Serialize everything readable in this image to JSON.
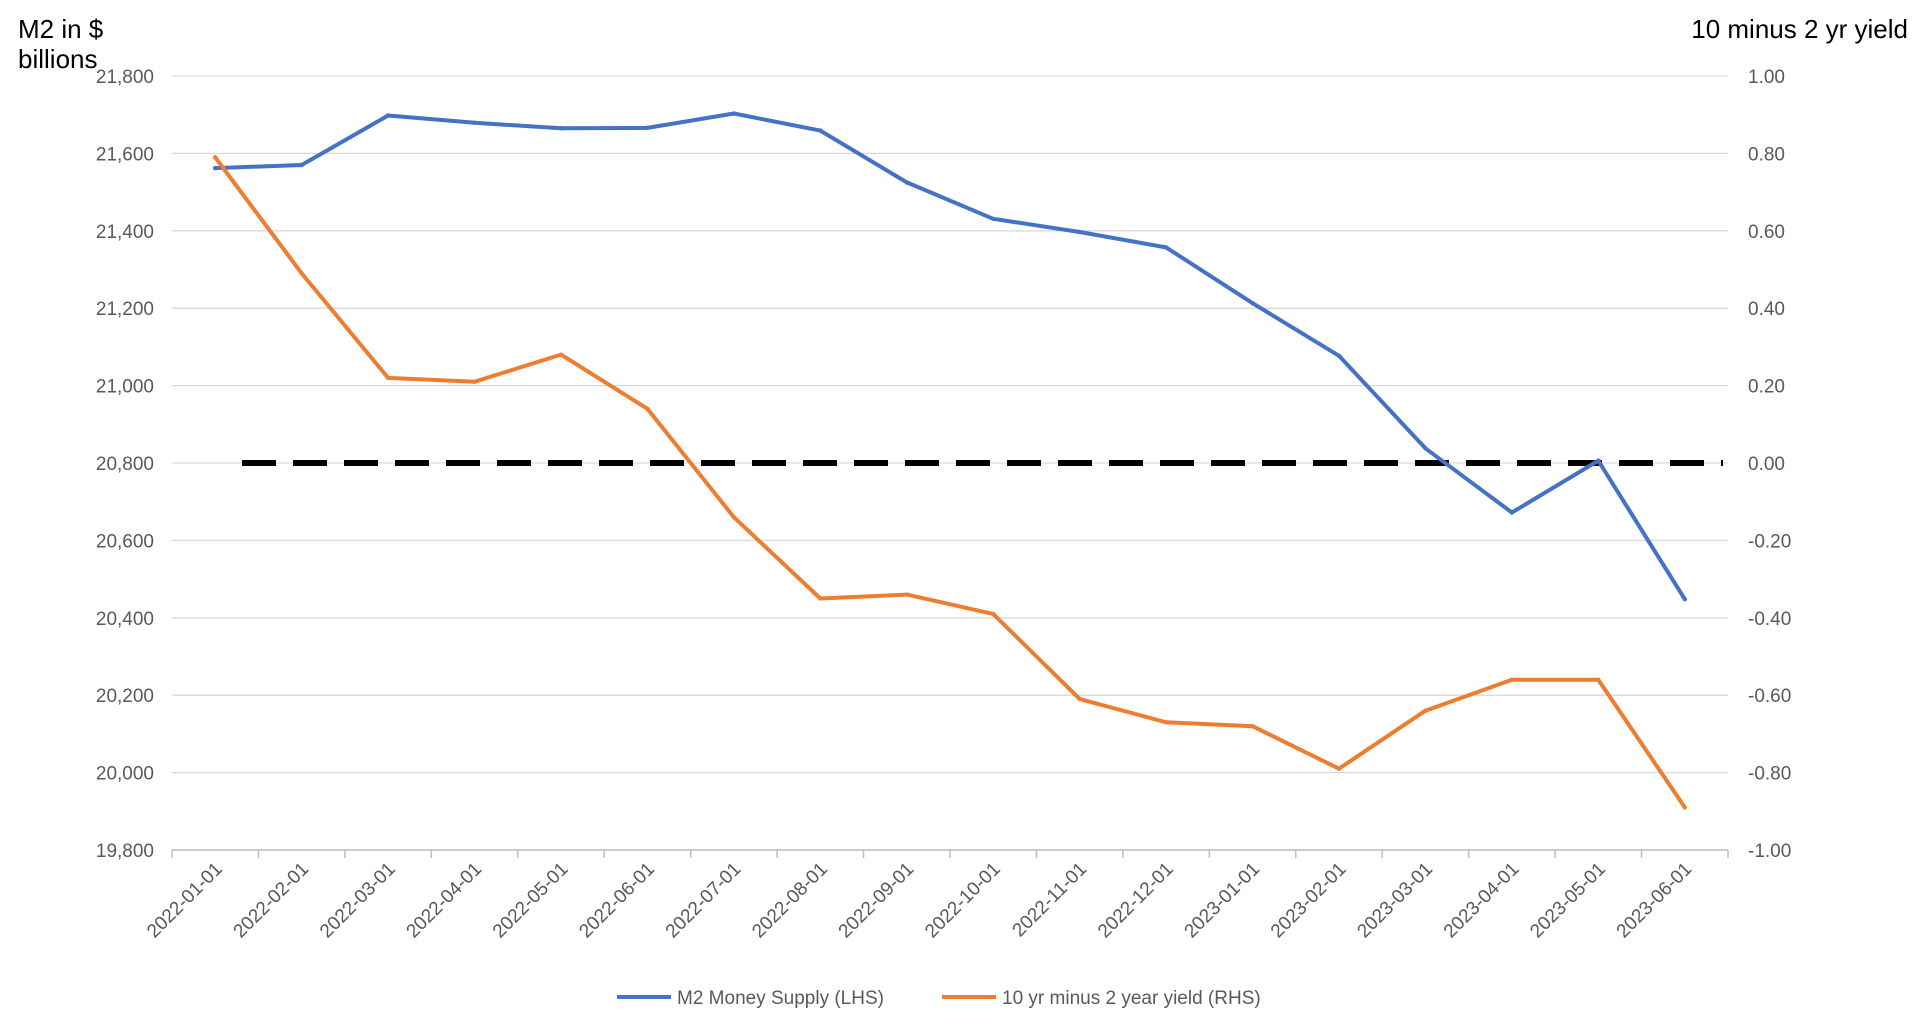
{
  "chart_data": {
    "type": "line",
    "x": [
      "2022-01-01",
      "2022-02-01",
      "2022-03-01",
      "2022-04-01",
      "2022-05-01",
      "2022-06-01",
      "2022-07-01",
      "2022-08-01",
      "2022-09-01",
      "2022-10-01",
      "2022-11-01",
      "2022-12-01",
      "2023-01-01",
      "2023-02-01",
      "2023-03-01",
      "2023-04-01",
      "2023-05-01",
      "2023-06-01"
    ],
    "ylabel_left": "M2 in $ billions",
    "ylabel_right": "10 minus 2 yr yield",
    "ylim_left": [
      19800,
      21800
    ],
    "ylim_right": [
      -1.0,
      1.0
    ],
    "yticks_left": [
      "21,800",
      "21,600",
      "21,400",
      "21,200",
      "21,000",
      "20,800",
      "20,600",
      "20,400",
      "20,200",
      "20,000",
      "19,800"
    ],
    "yticks_right": [
      "1.00",
      "0.80",
      "0.60",
      "0.40",
      "0.20",
      "0.00",
      "-0.20",
      "-0.40",
      "-0.60",
      "-0.80",
      "-1.00"
    ],
    "grid": "horizontal",
    "legend_position": "bottom",
    "series": [
      {
        "name": "M2 Money Supply (LHS)",
        "axis": "left",
        "color": "#4472C4",
        "values": [
          21562,
          21570,
          21698,
          21679,
          21665,
          21666,
          21703,
          21659,
          21525,
          21431,
          21397,
          21357,
          21213,
          21077,
          20838,
          20672,
          20806,
          20448
        ]
      },
      {
        "name": "10 yr minus 2 year yield (RHS)",
        "axis": "right",
        "color": "#ED7D31",
        "values": [
          0.79,
          0.49,
          0.22,
          0.21,
          0.28,
          0.14,
          -0.14,
          -0.35,
          -0.34,
          -0.39,
          -0.61,
          -0.67,
          -0.68,
          -0.79,
          -0.64,
          -0.56,
          -0.56,
          -0.89
        ]
      }
    ],
    "reference_line": {
      "axis": "right",
      "value": 0.0,
      "style": "dashed",
      "color": "#000000"
    }
  }
}
